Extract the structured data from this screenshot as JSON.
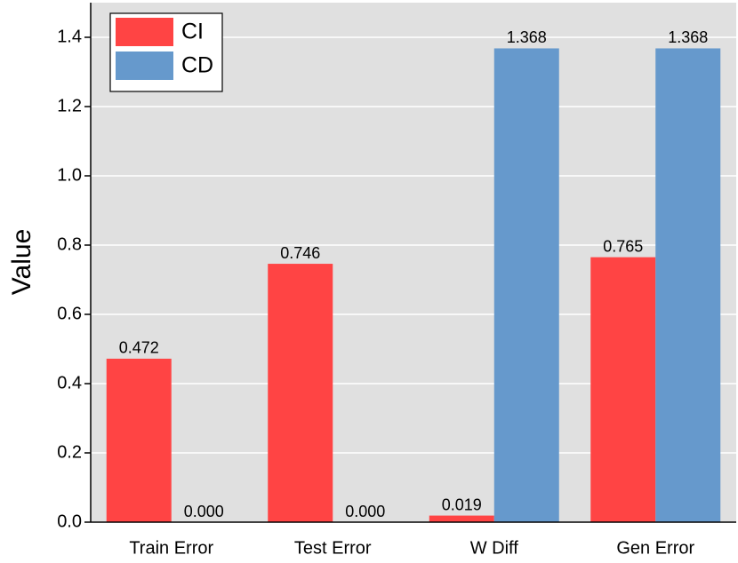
{
  "chart_data": {
    "type": "bar",
    "y_label": "Value",
    "categories": [
      "Train Error",
      "Test Error",
      "W Diff",
      "Gen Error"
    ],
    "series": [
      {
        "name": "CI",
        "color": "#ff4444",
        "values": [
          0.472,
          0.746,
          0.019,
          0.765
        ],
        "value_labels": [
          "0.472",
          "0.746",
          "0.019",
          "0.765"
        ]
      },
      {
        "name": "CD",
        "color": "#6699cc",
        "values": [
          0,
          0,
          1.368,
          1.368
        ],
        "value_labels": [
          "0.000",
          "0.000",
          "1.368",
          "1.368"
        ]
      }
    ],
    "ylim": [
      0,
      1.5
    ],
    "yticks": [
      {
        "value": 0,
        "label": "0.0"
      },
      0.2,
      0.4,
      0.6,
      0.8,
      {
        "value": 1,
        "label": "1.0"
      },
      1.2,
      1.4
    ],
    "grid": true,
    "legend": "upper left"
  }
}
